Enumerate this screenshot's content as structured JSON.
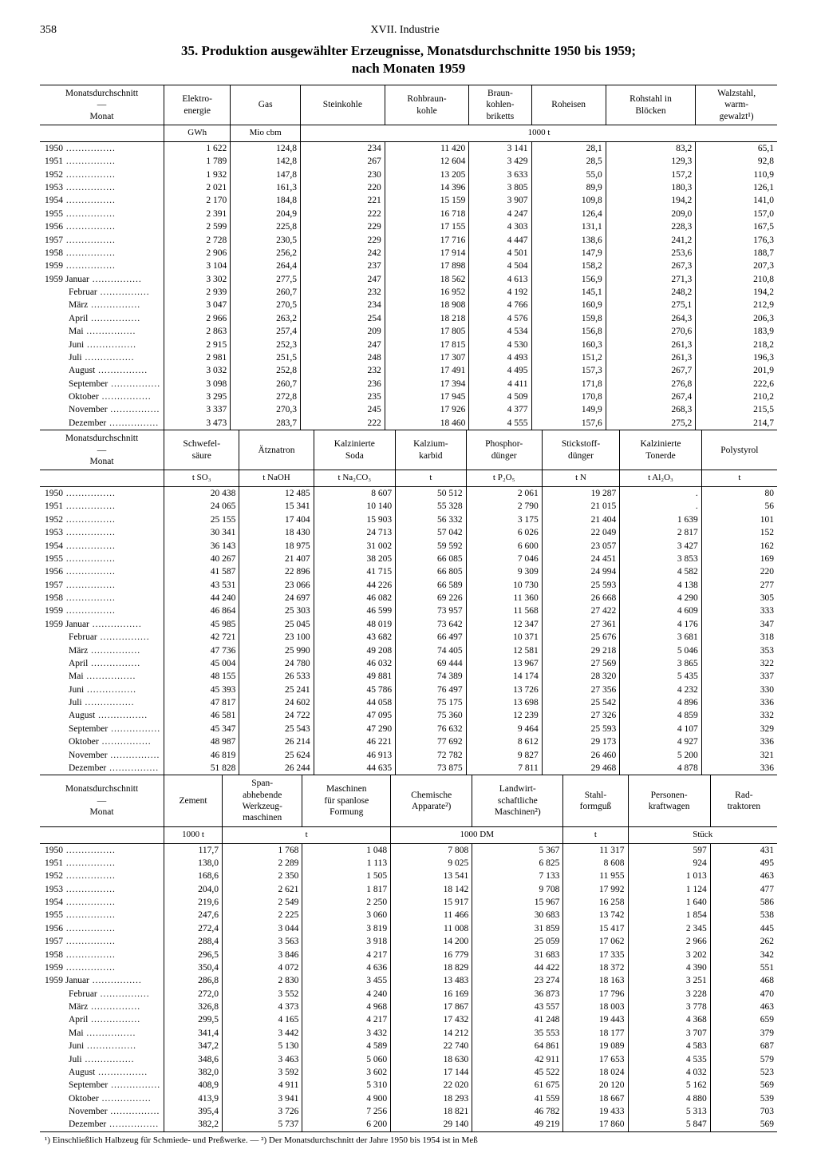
{
  "page": {
    "number": "358",
    "section": "XVII. Industrie",
    "title": "35. Produktion ausgewählter Erzeugnisse, Monatsdurchschnitte 1950 bis 1959;",
    "subtitle": "nach Monaten 1959"
  },
  "stub": {
    "header1": "Monatsdurchschnitt",
    "header2": "Monat"
  },
  "rowLabels": {
    "years": [
      "1950",
      "1951",
      "1952",
      "1953",
      "1954",
      "1955",
      "1956",
      "1957",
      "1958",
      "1959"
    ],
    "months": [
      "Januar",
      "Februar",
      "März",
      "April",
      "Mai",
      "Juni",
      "Juli",
      "August",
      "September",
      "Oktober",
      "November",
      "Dezember"
    ],
    "monthYear": "1959"
  },
  "blocks": [
    {
      "columns": [
        {
          "head": "Elektro-\nenergie",
          "unit": "GWh"
        },
        {
          "head": "Gas",
          "unit": "Mio cbm"
        },
        {
          "head": "Steinkohle",
          "unit": ""
        },
        {
          "head": "Rohbraun-\nkohle",
          "unit": ""
        },
        {
          "head": "Braun-\nkohlen-\nbriketts",
          "unit": "1000 t"
        },
        {
          "head": "Roheisen",
          "unit": ""
        },
        {
          "head": "Rohstahl in\nBlöcken",
          "unit": ""
        },
        {
          "head": "Walzstahl,\nwarm-\ngewalzt¹)",
          "unit": ""
        }
      ],
      "unitSpan": [
        1,
        1,
        6
      ],
      "yearRows": [
        [
          "1 622",
          "124,8",
          "234",
          "11 420",
          "3 141",
          "28,1",
          "83,2",
          "65,1"
        ],
        [
          "1 789",
          "142,8",
          "267",
          "12 604",
          "3 429",
          "28,5",
          "129,3",
          "92,8"
        ],
        [
          "1 932",
          "147,8",
          "230",
          "13 205",
          "3 633",
          "55,0",
          "157,2",
          "110,9"
        ],
        [
          "2 021",
          "161,3",
          "220",
          "14 396",
          "3 805",
          "89,9",
          "180,3",
          "126,1"
        ],
        [
          "2 170",
          "184,8",
          "221",
          "15 159",
          "3 907",
          "109,8",
          "194,2",
          "141,0"
        ],
        [
          "2 391",
          "204,9",
          "222",
          "16 718",
          "4 247",
          "126,4",
          "209,0",
          "157,0"
        ],
        [
          "2 599",
          "225,8",
          "229",
          "17 155",
          "4 303",
          "131,1",
          "228,3",
          "167,5"
        ],
        [
          "2 728",
          "230,5",
          "229",
          "17 716",
          "4 447",
          "138,6",
          "241,2",
          "176,3"
        ],
        [
          "2 906",
          "256,2",
          "242",
          "17 914",
          "4 501",
          "147,9",
          "253,6",
          "188,7"
        ],
        [
          "3 104",
          "264,4",
          "237",
          "17 898",
          "4 504",
          "158,2",
          "267,3",
          "207,3"
        ]
      ],
      "monthRows": [
        [
          "3 302",
          "277,5",
          "247",
          "18 562",
          "4 613",
          "156,9",
          "271,3",
          "210,8"
        ],
        [
          "2 939",
          "260,7",
          "232",
          "16 952",
          "4 192",
          "145,1",
          "248,2",
          "194,2"
        ],
        [
          "3 047",
          "270,5",
          "234",
          "18 908",
          "4 766",
          "160,9",
          "275,1",
          "212,9"
        ],
        [
          "2 966",
          "263,2",
          "254",
          "18 218",
          "4 576",
          "159,8",
          "264,3",
          "206,3"
        ],
        [
          "2 863",
          "257,4",
          "209",
          "17 805",
          "4 534",
          "156,8",
          "270,6",
          "183,9"
        ],
        [
          "2 915",
          "252,3",
          "247",
          "17 815",
          "4 530",
          "160,3",
          "261,3",
          "218,2"
        ],
        [
          "2 981",
          "251,5",
          "248",
          "17 307",
          "4 493",
          "151,2",
          "261,3",
          "196,3"
        ],
        [
          "3 032",
          "252,8",
          "232",
          "17 491",
          "4 495",
          "157,3",
          "267,7",
          "201,9"
        ],
        [
          "3 098",
          "260,7",
          "236",
          "17 394",
          "4 411",
          "171,8",
          "276,8",
          "222,6"
        ],
        [
          "3 295",
          "272,8",
          "235",
          "17 945",
          "4 509",
          "170,8",
          "267,4",
          "210,2"
        ],
        [
          "3 337",
          "270,3",
          "245",
          "17 926",
          "4 377",
          "149,9",
          "268,3",
          "215,5"
        ],
        [
          "3 473",
          "283,7",
          "222",
          "18 460",
          "4 555",
          "157,6",
          "275,2",
          "214,7"
        ]
      ]
    },
    {
      "columns": [
        {
          "head": "Schwefel-\nsäure",
          "unit": "t SO₃"
        },
        {
          "head": "Ätznatron",
          "unit": "t NaOH"
        },
        {
          "head": "Kalzinierte\nSoda",
          "unit": "t Na₂CO₃"
        },
        {
          "head": "Kalzium-\nkarbid",
          "unit": "t"
        },
        {
          "head": "Phosphor-\ndünger",
          "unit": "t P₂O₅"
        },
        {
          "head": "Stickstoff-\ndünger",
          "unit": "t N"
        },
        {
          "head": "Kalzinierte\nTonerde",
          "unit": "t Al₂O₃"
        },
        {
          "head": "Polystyrol",
          "unit": "t"
        }
      ],
      "unitSpan": [
        1,
        1,
        1,
        1,
        1,
        1,
        1,
        1
      ],
      "yearRows": [
        [
          "20 438",
          "12 485",
          "8 607",
          "50 512",
          "2 061",
          "19 287",
          ".",
          "80"
        ],
        [
          "24 065",
          "15 341",
          "10 140",
          "55 328",
          "2 790",
          "21 015",
          ".",
          "56"
        ],
        [
          "25 155",
          "17 404",
          "15 903",
          "56 332",
          "3 175",
          "21 404",
          "1 639",
          "101"
        ],
        [
          "30 341",
          "18 430",
          "24 713",
          "57 042",
          "6 026",
          "22 049",
          "2 817",
          "152"
        ],
        [
          "36 143",
          "18 975",
          "31 002",
          "59 592",
          "6 600",
          "23 057",
          "3 427",
          "162"
        ],
        [
          "40 267",
          "21 407",
          "38 205",
          "66 085",
          "7 046",
          "24 451",
          "3 853",
          "169"
        ],
        [
          "41 587",
          "22 896",
          "41 715",
          "66 805",
          "9 309",
          "24 994",
          "4 582",
          "220"
        ],
        [
          "43 531",
          "23 066",
          "44 226",
          "66 589",
          "10 730",
          "25 593",
          "4 138",
          "277"
        ],
        [
          "44 240",
          "24 697",
          "46 082",
          "69 226",
          "11 360",
          "26 668",
          "4 290",
          "305"
        ],
        [
          "46 864",
          "25 303",
          "46 599",
          "73 957",
          "11 568",
          "27 422",
          "4 609",
          "333"
        ]
      ],
      "monthRows": [
        [
          "45 985",
          "25 045",
          "48 019",
          "73 642",
          "12 347",
          "27 361",
          "4 176",
          "347"
        ],
        [
          "42 721",
          "23 100",
          "43 682",
          "66 497",
          "10 371",
          "25 676",
          "3 681",
          "318"
        ],
        [
          "47 736",
          "25 990",
          "49 208",
          "74 405",
          "12 581",
          "29 218",
          "5 046",
          "353"
        ],
        [
          "45 004",
          "24 780",
          "46 032",
          "69 444",
          "13 967",
          "27 569",
          "3 865",
          "322"
        ],
        [
          "48 155",
          "26 533",
          "49 881",
          "74 389",
          "14 174",
          "28 320",
          "5 435",
          "337"
        ],
        [
          "45 393",
          "25 241",
          "45 786",
          "76 497",
          "13 726",
          "27 356",
          "4 232",
          "330"
        ],
        [
          "47 817",
          "24 602",
          "44 058",
          "75 175",
          "13 698",
          "25 542",
          "4 896",
          "336"
        ],
        [
          "46 581",
          "24 722",
          "47 095",
          "75 360",
          "12 239",
          "27 326",
          "4 859",
          "332"
        ],
        [
          "45 347",
          "25 543",
          "47 290",
          "76 632",
          "9 464",
          "25 593",
          "4 107",
          "329"
        ],
        [
          "48 987",
          "26 214",
          "46 221",
          "77 692",
          "8 612",
          "29 173",
          "4 927",
          "336"
        ],
        [
          "46 819",
          "25 624",
          "46 913",
          "72 782",
          "9 827",
          "26 460",
          "5 200",
          "321"
        ],
        [
          "51 828",
          "26 244",
          "44 635",
          "73 875",
          "7 811",
          "29 468",
          "4 878",
          "336"
        ]
      ]
    },
    {
      "columns": [
        {
          "head": "Zement",
          "unit": "1000 t"
        },
        {
          "head": "Span-\nabhebende\nWerkzeug-\nmaschinen",
          "unit": ""
        },
        {
          "head": "Maschinen\nfür spanlose\nFormung",
          "unit": "t"
        },
        {
          "head": "Chemische\nApparate²)",
          "unit": ""
        },
        {
          "head": "Landwirt-\nschaftliche\nMaschinen²)",
          "unit": "1000 DM"
        },
        {
          "head": "Stahl-\nformguß",
          "unit": "t"
        },
        {
          "head": "Personen-\nkraftwagen",
          "unit": ""
        },
        {
          "head": "Rad-\ntraktoren",
          "unit": "Stück"
        }
      ],
      "unitSpan": [
        1,
        2,
        2,
        1,
        2
      ],
      "yearRows": [
        [
          "117,7",
          "1 768",
          "1 048",
          "7 808",
          "5 367",
          "11 317",
          "597",
          "431"
        ],
        [
          "138,0",
          "2 289",
          "1 113",
          "9 025",
          "6 825",
          "8 608",
          "924",
          "495"
        ],
        [
          "168,6",
          "2 350",
          "1 505",
          "13 541",
          "7 133",
          "11 955",
          "1 013",
          "463"
        ],
        [
          "204,0",
          "2 621",
          "1 817",
          "18 142",
          "9 708",
          "17 992",
          "1 124",
          "477"
        ],
        [
          "219,6",
          "2 549",
          "2 250",
          "15 917",
          "15 967",
          "16 258",
          "1 640",
          "586"
        ],
        [
          "247,6",
          "2 225",
          "3 060",
          "11 466",
          "30 683",
          "13 742",
          "1 854",
          "538"
        ],
        [
          "272,4",
          "3 044",
          "3 819",
          "11 008",
          "31 859",
          "15 417",
          "2 345",
          "445"
        ],
        [
          "288,4",
          "3 563",
          "3 918",
          "14 200",
          "25 059",
          "17 062",
          "2 966",
          "262"
        ],
        [
          "296,5",
          "3 846",
          "4 217",
          "16 779",
          "31 683",
          "17 335",
          "3 202",
          "342"
        ],
        [
          "350,4",
          "4 072",
          "4 636",
          "18 829",
          "44 422",
          "18 372",
          "4 390",
          "551"
        ]
      ],
      "monthRows": [
        [
          "286,8",
          "2 830",
          "3 455",
          "13 483",
          "23 274",
          "18 163",
          "3 251",
          "468"
        ],
        [
          "272,0",
          "3 552",
          "4 240",
          "16 169",
          "36 873",
          "17 796",
          "3 228",
          "470"
        ],
        [
          "326,8",
          "4 373",
          "4 968",
          "17 867",
          "43 557",
          "18 003",
          "3 778",
          "463"
        ],
        [
          "299,5",
          "4 165",
          "4 217",
          "17 432",
          "41 248",
          "19 443",
          "4 368",
          "659"
        ],
        [
          "341,4",
          "3 442",
          "3 432",
          "14 212",
          "35 553",
          "18 177",
          "3 707",
          "379"
        ],
        [
          "347,2",
          "5 130",
          "4 589",
          "22 740",
          "64 861",
          "19 089",
          "4 583",
          "687"
        ],
        [
          "348,6",
          "3 463",
          "5 060",
          "18 630",
          "42 911",
          "17 653",
          "4 535",
          "579"
        ],
        [
          "382,0",
          "3 592",
          "3 602",
          "17 144",
          "45 522",
          "18 024",
          "4 032",
          "523"
        ],
        [
          "408,9",
          "4 911",
          "5 310",
          "22 020",
          "61 675",
          "20 120",
          "5 162",
          "569"
        ],
        [
          "413,9",
          "3 941",
          "4 900",
          "18 293",
          "41 559",
          "18 667",
          "4 880",
          "539"
        ],
        [
          "395,4",
          "3 726",
          "7 256",
          "18 821",
          "46 782",
          "19 433",
          "5 313",
          "703"
        ],
        [
          "382,2",
          "5 737",
          "6 200",
          "29 140",
          "49 219",
          "17 860",
          "5 847",
          "569"
        ]
      ]
    }
  ],
  "footnote": "¹) Einschließlich Halbzeug für Schmiede- und Preßwerke.  —  ²) Der Monatsdurchschnitt der Jahre 1950 bis 1954 ist in Meß"
}
